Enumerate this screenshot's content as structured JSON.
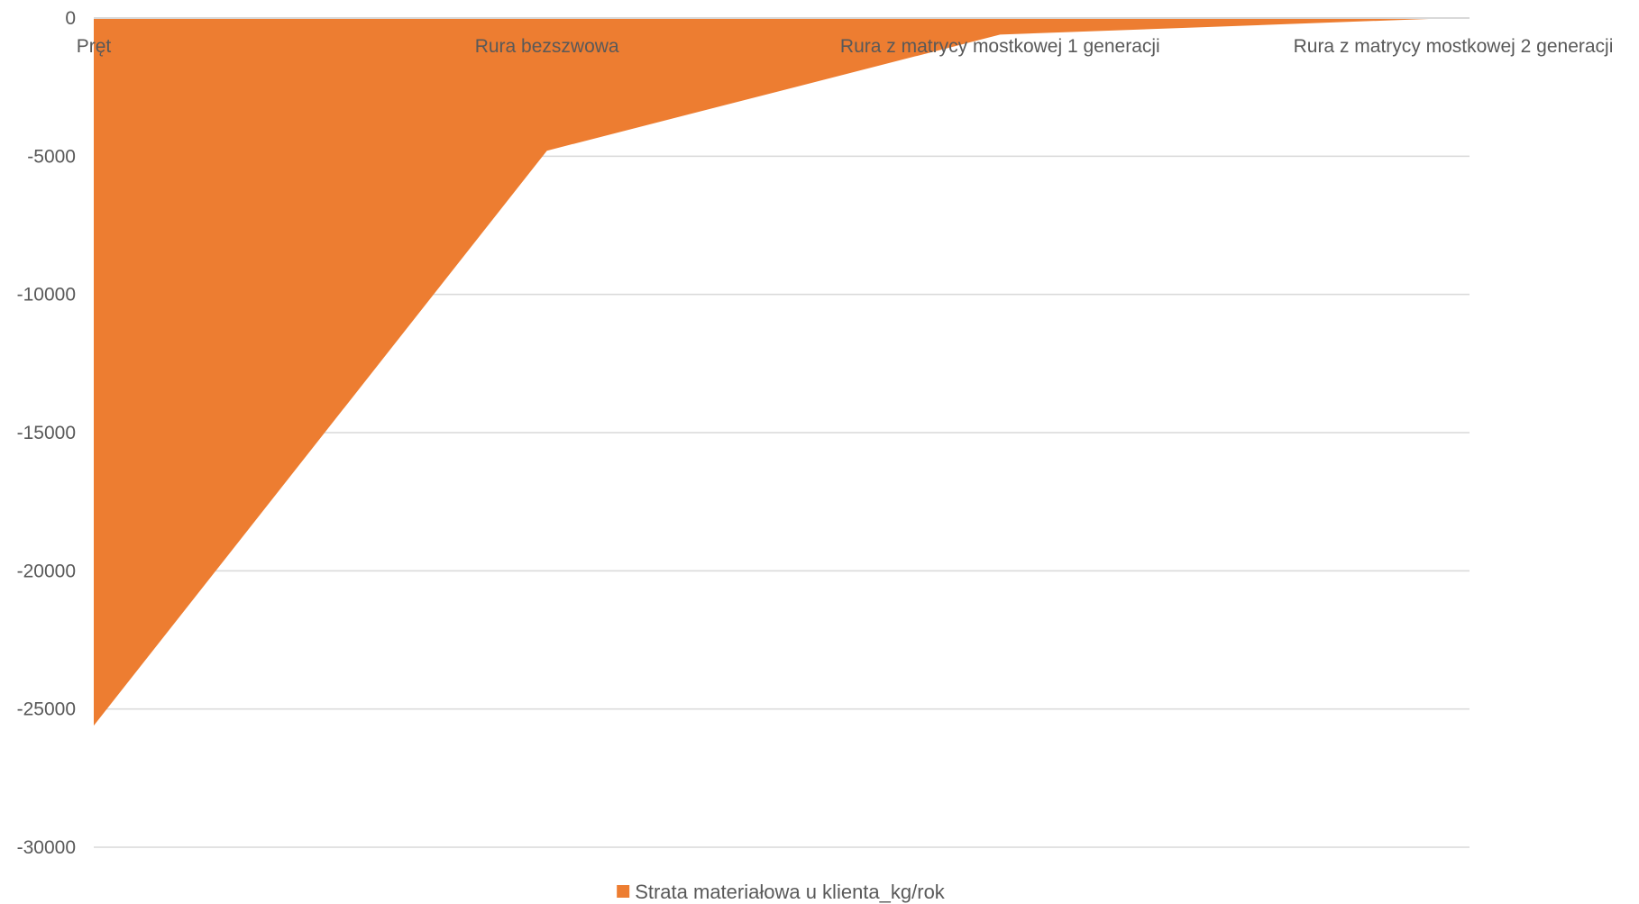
{
  "chart_data": {
    "type": "area",
    "categories": [
      "Pręt",
      "Rura bezszwowa",
      "Rura z matrycy mostkowej 1 generacji",
      "Rura z matrycy mostkowej 2 generacji"
    ],
    "series": [
      {
        "name": "Strata materiałowa u klienta_kg/rok",
        "values": [
          -25600,
          -4800,
          -600,
          0
        ],
        "color": "#ED7D31"
      }
    ],
    "ylim": [
      -30000,
      0
    ],
    "yticks": [
      0,
      -5000,
      -10000,
      -15000,
      -20000,
      -25000,
      -30000
    ],
    "ytick_labels": [
      "0",
      "-5000",
      "-10000",
      "-15000",
      "-20000",
      "-25000",
      "-30000"
    ],
    "grid": true,
    "legend_position": "bottom",
    "colors": {
      "series": "#ED7D31",
      "grid": "#D9D9D9",
      "text": "#595959"
    }
  }
}
